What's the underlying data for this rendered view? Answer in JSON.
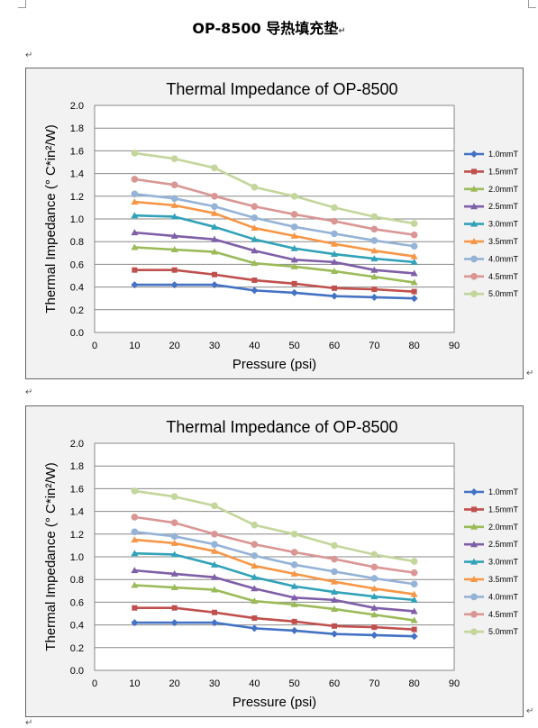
{
  "document": {
    "title": "OP-8500  导热填充垫",
    "paragraph_mark": "↵"
  },
  "chart_data": [
    {
      "type": "line",
      "title": "Thermal Impedance of OP-8500",
      "xlabel": "Pressure (psi)",
      "ylabel": "Thermal Impedance (° C*in²/W)",
      "xlim": [
        0,
        90
      ],
      "ylim": [
        0,
        2.0
      ],
      "x_ticks": [
        "0",
        "10",
        "20",
        "30",
        "40",
        "50",
        "60",
        "70",
        "80",
        "90"
      ],
      "y_ticks": [
        "0.0",
        "0.2",
        "0.4",
        "0.6",
        "0.8",
        "1.0",
        "1.2",
        "1.4",
        "1.6",
        "1.8",
        "2.0"
      ],
      "grid": true,
      "legend_position": "right",
      "x": [
        10,
        20,
        30,
        40,
        50,
        60,
        70,
        80
      ],
      "series": [
        {
          "name": "1.0mmT",
          "color": "#4472c4",
          "marker": "diamond",
          "values": [
            0.42,
            0.42,
            0.42,
            0.37,
            0.35,
            0.32,
            0.31,
            0.3
          ]
        },
        {
          "name": "1.5mmT",
          "color": "#c0504d",
          "marker": "square",
          "values": [
            0.55,
            0.55,
            0.51,
            0.46,
            0.43,
            0.39,
            0.38,
            0.36
          ]
        },
        {
          "name": "2.0mmT",
          "color": "#9bbb59",
          "marker": "triangle",
          "values": [
            0.75,
            0.73,
            0.71,
            0.61,
            0.58,
            0.54,
            0.49,
            0.44
          ]
        },
        {
          "name": "2.5mmT",
          "color": "#7f5fa8",
          "marker": "triangle",
          "values": [
            0.88,
            0.85,
            0.82,
            0.72,
            0.64,
            0.62,
            0.55,
            0.52
          ]
        },
        {
          "name": "3.0mmT",
          "color": "#31a2b8",
          "marker": "triangle",
          "values": [
            1.03,
            1.02,
            0.93,
            0.82,
            0.74,
            0.69,
            0.65,
            0.62
          ]
        },
        {
          "name": "3.5mmT",
          "color": "#f79646",
          "marker": "triangle",
          "values": [
            1.15,
            1.12,
            1.05,
            0.92,
            0.85,
            0.78,
            0.72,
            0.67
          ]
        },
        {
          "name": "4.0mmT",
          "color": "#95b3d7",
          "marker": "circle",
          "values": [
            1.22,
            1.18,
            1.11,
            1.01,
            0.93,
            0.87,
            0.81,
            0.76
          ]
        },
        {
          "name": "4.5mmT",
          "color": "#d99694",
          "marker": "circle",
          "values": [
            1.35,
            1.3,
            1.2,
            1.11,
            1.04,
            0.98,
            0.91,
            0.86
          ]
        },
        {
          "name": "5.0mmT",
          "color": "#c3d69b",
          "marker": "circle",
          "values": [
            1.58,
            1.53,
            1.45,
            1.28,
            1.2,
            1.1,
            1.02,
            0.96
          ]
        }
      ]
    },
    {
      "type": "line",
      "title": "Thermal Impedance of OP-8500",
      "xlabel": "Pressure (psi)",
      "ylabel": "Thermal Impedance (° C*in²/W)",
      "xlim": [
        0,
        90
      ],
      "ylim": [
        0,
        2.0
      ],
      "x_ticks": [
        "0",
        "10",
        "20",
        "30",
        "40",
        "50",
        "60",
        "70",
        "80",
        "90"
      ],
      "y_ticks": [
        "0.0",
        "0.2",
        "0.4",
        "0.6",
        "0.8",
        "1.0",
        "1.2",
        "1.4",
        "1.6",
        "1.8",
        "2.0"
      ],
      "grid": true,
      "legend_position": "right",
      "x": [
        10,
        20,
        30,
        40,
        50,
        60,
        70,
        80
      ],
      "series": [
        {
          "name": "1.0mmT",
          "color": "#4472c4",
          "marker": "diamond",
          "values": [
            0.42,
            0.42,
            0.42,
            0.37,
            0.35,
            0.32,
            0.31,
            0.3
          ]
        },
        {
          "name": "1.5mmT",
          "color": "#c0504d",
          "marker": "square",
          "values": [
            0.55,
            0.55,
            0.51,
            0.46,
            0.43,
            0.39,
            0.38,
            0.36
          ]
        },
        {
          "name": "2.0mmT",
          "color": "#9bbb59",
          "marker": "triangle",
          "values": [
            0.75,
            0.73,
            0.71,
            0.61,
            0.58,
            0.54,
            0.49,
            0.44
          ]
        },
        {
          "name": "2.5mmT",
          "color": "#7f5fa8",
          "marker": "triangle",
          "values": [
            0.88,
            0.85,
            0.82,
            0.72,
            0.64,
            0.62,
            0.55,
            0.52
          ]
        },
        {
          "name": "3.0mmT",
          "color": "#31a2b8",
          "marker": "triangle",
          "values": [
            1.03,
            1.02,
            0.93,
            0.82,
            0.74,
            0.69,
            0.65,
            0.62
          ]
        },
        {
          "name": "3.5mmT",
          "color": "#f79646",
          "marker": "triangle",
          "values": [
            1.15,
            1.12,
            1.05,
            0.92,
            0.85,
            0.78,
            0.72,
            0.67
          ]
        },
        {
          "name": "4.0mmT",
          "color": "#95b3d7",
          "marker": "circle",
          "values": [
            1.22,
            1.18,
            1.11,
            1.01,
            0.93,
            0.87,
            0.81,
            0.76
          ]
        },
        {
          "name": "4.5mmT",
          "color": "#d99694",
          "marker": "circle",
          "values": [
            1.35,
            1.3,
            1.2,
            1.11,
            1.04,
            0.98,
            0.91,
            0.86
          ]
        },
        {
          "name": "5.0mmT",
          "color": "#c3d69b",
          "marker": "circle",
          "values": [
            1.58,
            1.53,
            1.45,
            1.28,
            1.2,
            1.1,
            1.02,
            0.96
          ]
        }
      ]
    }
  ]
}
